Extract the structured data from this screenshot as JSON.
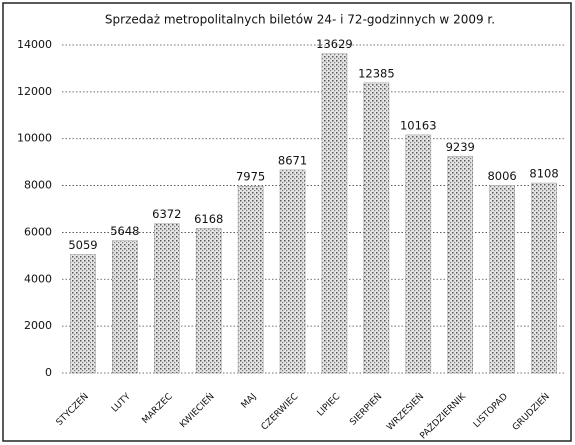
{
  "chart_data": {
    "type": "bar",
    "title": "Sprzedaż metropolitalnych biletów 24- i 72-godzinnych w 2009 r.",
    "categories": [
      "STYCZEŃ",
      "LUTY",
      "MARZEC",
      "KWIECIEŃ",
      "MAJ",
      "CZERWIEC",
      "LIPIEC",
      "SIERPIEŃ",
      "WRZESIEŃ",
      "PAŹDZIERNIK",
      "LISTOPAD",
      "GRUDZIEŃ"
    ],
    "values": [
      5059,
      5648,
      6372,
      6168,
      7975,
      8671,
      13629,
      12385,
      10163,
      9239,
      8006,
      8108
    ],
    "color": "#9a9a9a",
    "ylim": [
      0,
      14000
    ],
    "yticks": [
      0,
      2000,
      4000,
      6000,
      8000,
      10000,
      12000,
      14000
    ],
    "grid": true
  }
}
